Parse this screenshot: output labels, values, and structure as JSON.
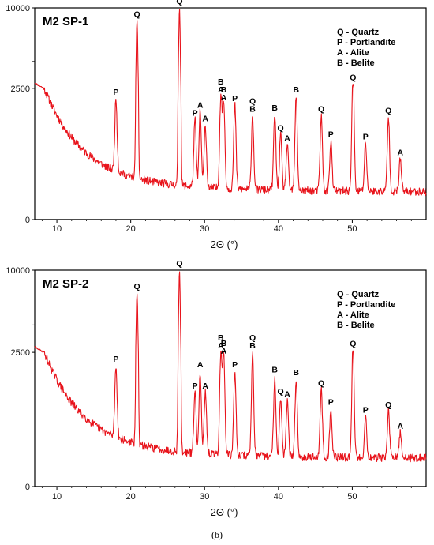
{
  "caption": "(b)",
  "chart_data": [
    {
      "type": "line",
      "title": "M2 SP-1",
      "xlabel": "2Θ (°)",
      "ylabel": "",
      "xlim": [
        7,
        60
      ],
      "ylim": [
        0,
        10000
      ],
      "x_ticks": [
        "10",
        "20",
        "30",
        "40",
        "50"
      ],
      "y_ticks": [
        "0",
        "2500",
        "5000",
        "10000"
      ],
      "grid": false,
      "line_color": "#e8141c",
      "legend_position": "top-right",
      "legend": [
        "Q - Quartz",
        "P - Portlandite",
        "A - Alite",
        "B - Belite"
      ],
      "peaks": [
        {
          "x": 18.0,
          "y": 2300,
          "labels": [
            "P"
          ]
        },
        {
          "x": 20.85,
          "y": 8800,
          "labels": [
            "Q"
          ]
        },
        {
          "x": 26.6,
          "y": 10000,
          "labels": [
            "Q"
          ]
        },
        {
          "x": 28.7,
          "y": 1900,
          "labels": [
            "P"
          ]
        },
        {
          "x": 29.4,
          "y": 2050,
          "labels": [
            "A"
          ]
        },
        {
          "x": 30.1,
          "y": 1800,
          "labels": [
            "A"
          ]
        },
        {
          "x": 32.2,
          "y": 2350,
          "labels": [
            "B",
            "A"
          ]
        },
        {
          "x": 32.6,
          "y": 2200,
          "labels": [
            "B",
            "A"
          ]
        },
        {
          "x": 34.1,
          "y": 2180,
          "labels": [
            "P"
          ]
        },
        {
          "x": 36.5,
          "y": 1980,
          "labels": [
            "Q",
            "B"
          ]
        },
        {
          "x": 39.5,
          "y": 2000,
          "labels": [
            "B"
          ]
        },
        {
          "x": 40.3,
          "y": 1620,
          "labels": [
            "Q"
          ]
        },
        {
          "x": 41.2,
          "y": 1420,
          "labels": [
            "A"
          ]
        },
        {
          "x": 42.4,
          "y": 2350,
          "labels": [
            "B"
          ]
        },
        {
          "x": 45.8,
          "y": 1980,
          "labels": [
            "Q"
          ]
        },
        {
          "x": 47.1,
          "y": 1500,
          "labels": [
            "P"
          ]
        },
        {
          "x": 50.1,
          "y": 2900,
          "labels": [
            "Q"
          ]
        },
        {
          "x": 51.8,
          "y": 1450,
          "labels": [
            "P"
          ]
        },
        {
          "x": 54.9,
          "y": 1950,
          "labels": [
            "Q"
          ]
        },
        {
          "x": 56.5,
          "y": 1150,
          "labels": [
            "A"
          ]
        }
      ]
    },
    {
      "type": "line",
      "title": "M2 SP-2",
      "xlabel": "2Θ (°)",
      "ylabel": "",
      "xlim": [
        7,
        60
      ],
      "ylim": [
        0,
        10000
      ],
      "x_ticks": [
        "10",
        "20",
        "30",
        "40",
        "50"
      ],
      "y_ticks": [
        "0",
        "2500",
        "5000",
        "10000"
      ],
      "grid": false,
      "line_color": "#e8141c",
      "legend_position": "top-right",
      "legend": [
        "Q - Quartz",
        "P - Portlandite",
        "A - Alite",
        "B - Belite"
      ],
      "peaks": [
        {
          "x": 18.0,
          "y": 2250,
          "labels": [
            "P"
          ]
        },
        {
          "x": 20.85,
          "y": 7900,
          "labels": [
            "Q"
          ]
        },
        {
          "x": 26.6,
          "y": 10000,
          "labels": [
            "Q"
          ]
        },
        {
          "x": 28.7,
          "y": 1750,
          "labels": [
            "P"
          ]
        },
        {
          "x": 29.4,
          "y": 2150,
          "labels": [
            "A"
          ]
        },
        {
          "x": 30.1,
          "y": 1750,
          "labels": [
            "A"
          ]
        },
        {
          "x": 32.2,
          "y": 2500,
          "labels": [
            "B",
            "A"
          ]
        },
        {
          "x": 32.6,
          "y": 2400,
          "labels": [
            "B",
            "A"
          ]
        },
        {
          "x": 34.1,
          "y": 2150,
          "labels": [
            "P"
          ]
        },
        {
          "x": 36.5,
          "y": 2500,
          "labels": [
            "Q",
            "B"
          ]
        },
        {
          "x": 39.5,
          "y": 2050,
          "labels": [
            "B"
          ]
        },
        {
          "x": 40.3,
          "y": 1650,
          "labels": [
            "Q"
          ]
        },
        {
          "x": 41.2,
          "y": 1600,
          "labels": [
            "A"
          ]
        },
        {
          "x": 42.4,
          "y": 2000,
          "labels": [
            "B"
          ]
        },
        {
          "x": 45.8,
          "y": 1800,
          "labels": [
            "Q"
          ]
        },
        {
          "x": 47.1,
          "y": 1450,
          "labels": [
            "P"
          ]
        },
        {
          "x": 50.1,
          "y": 2700,
          "labels": [
            "Q"
          ]
        },
        {
          "x": 51.8,
          "y": 1300,
          "labels": [
            "P"
          ]
        },
        {
          "x": 54.9,
          "y": 1400,
          "labels": [
            "Q"
          ]
        },
        {
          "x": 56.5,
          "y": 1000,
          "labels": [
            "A"
          ]
        }
      ]
    }
  ]
}
